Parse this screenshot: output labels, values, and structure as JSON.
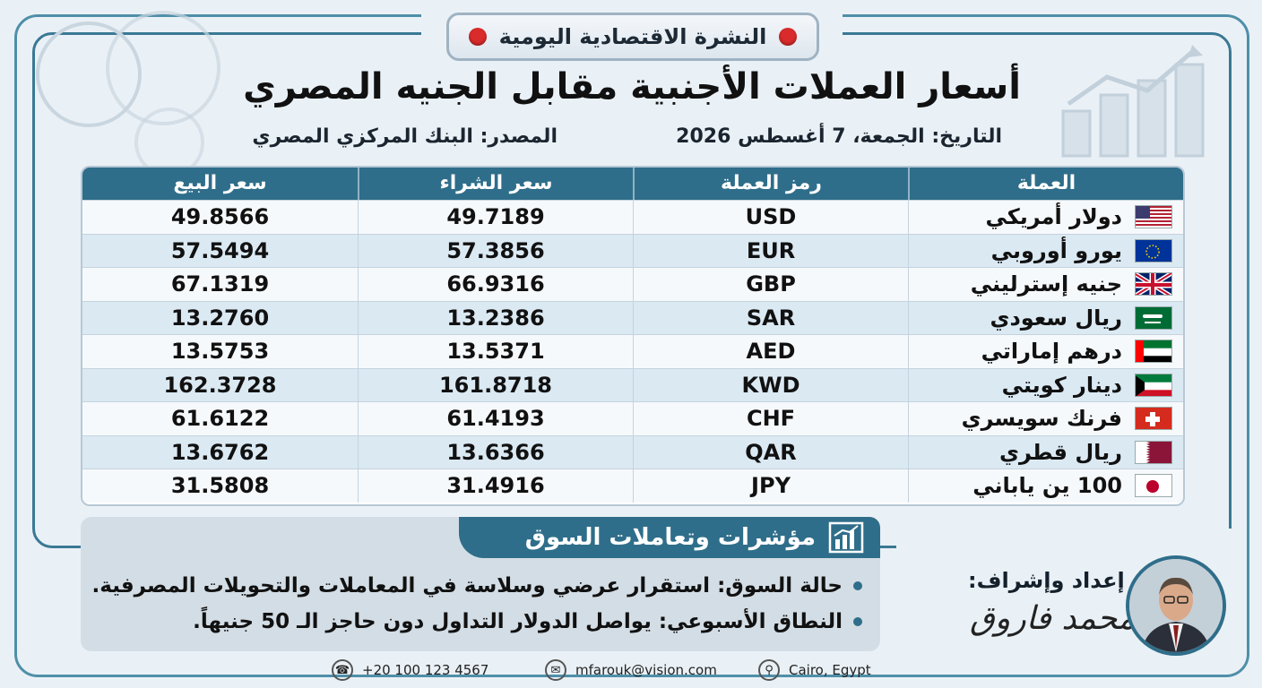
{
  "header": {
    "badge": "النشرة الاقتصادية اليومية",
    "title": "أسعار العملات الأجنبية مقابل الجنيه المصري",
    "date": "التاريخ: الجمعة، 7 أغسطس 2026",
    "source": "المصدر: البنك المركزي المصري"
  },
  "table": {
    "columns": [
      "العملة",
      "رمز العملة",
      "سعر الشراء",
      "سعر البيع"
    ],
    "rows": [
      {
        "flag": "us-flag-icon",
        "name": "دولار أمريكي",
        "code": "USD",
        "buy": "49.7189",
        "sell": "49.8566"
      },
      {
        "flag": "eu-flag-icon",
        "name": "يورو أوروبي",
        "code": "EUR",
        "buy": "57.3856",
        "sell": "57.5494"
      },
      {
        "flag": "uk-flag-icon",
        "name": "جنيه إسترليني",
        "code": "GBP",
        "buy": "66.9316",
        "sell": "67.1319"
      },
      {
        "flag": "sa-flag-icon",
        "name": "ريال سعودي",
        "code": "SAR",
        "buy": "13.2386",
        "sell": "13.2760"
      },
      {
        "flag": "ae-flag-icon",
        "name": "درهم إماراتي",
        "code": "AED",
        "buy": "13.5371",
        "sell": "13.5753"
      },
      {
        "flag": "kw-flag-icon",
        "name": "دينار كويتي",
        "code": "KWD",
        "buy": "161.8718",
        "sell": "162.3728"
      },
      {
        "flag": "ch-flag-icon",
        "name": "فرنك سويسري",
        "code": "CHF",
        "buy": "61.4193",
        "sell": "61.6122"
      },
      {
        "flag": "qa-flag-icon",
        "name": "ريال قطري",
        "code": "QAR",
        "buy": "13.6366",
        "sell": "13.6762"
      },
      {
        "flag": "jp-flag-icon",
        "name": "100 ين ياباني",
        "code": "JPY",
        "buy": "31.4916",
        "sell": "31.5808"
      }
    ]
  },
  "market": {
    "title": "مؤشرات وتعاملات السوق",
    "bullets": [
      "حالة السوق: استقرار عرضي وسلاسة في المعاملات والتحويلات المصرفية.",
      "النطاق الأسبوعي: يواصل الدولار التداول دون حاجز الـ 50 جنيهاً."
    ]
  },
  "author": {
    "label": "إعداد وإشراف:",
    "signature": "محمد فاروق"
  },
  "footer": {
    "phone": "+20 100 123 4567",
    "email": "mfarouk@vision.com",
    "location": "Cairo, Egypt"
  },
  "colors": {
    "accent": "#2f6e8a",
    "row_alt": "#dbe9f3",
    "alert_dot": "#d92b2b"
  }
}
